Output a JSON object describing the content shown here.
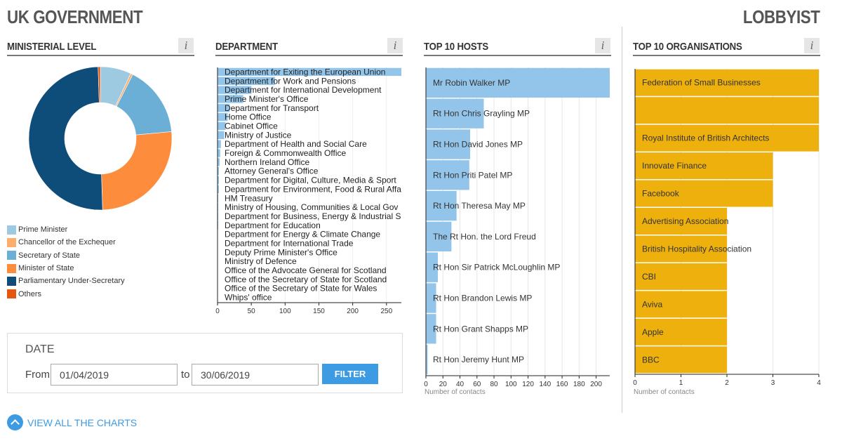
{
  "header": {
    "left_title": "UK GOVERNMENT",
    "right_title": "LOBBYIST"
  },
  "info_label": "i",
  "panels": {
    "ministerial_level": "MINISTERIAL LEVEL",
    "department": "DEPARTMENT",
    "top_hosts": "TOP 10 HOSTS",
    "top_orgs": "TOP 10 ORGANISATIONS"
  },
  "colors": {
    "hosts_bar": "#93c5ea",
    "orgs_bar": "#edb00c",
    "accent": "#3d9be4",
    "dept_bar": "#93c5ea"
  },
  "chart_data": [
    {
      "type": "pie",
      "name": "ministerial-level",
      "labels": [
        "Prime Minister",
        "Chancellor of the Exchequer",
        "Secretary of State",
        "Minister of State",
        "Parliamentary Under-Secretary",
        "Others"
      ],
      "values": [
        7,
        0.5,
        16,
        26,
        50,
        0.5
      ],
      "colors": [
        "#9ecae1",
        "#fdae6b",
        "#6baed6",
        "#fd8d3c",
        "#0e4c7a",
        "#e6550d"
      ],
      "legend": "bottom-left"
    },
    {
      "type": "bar",
      "orientation": "horizontal",
      "name": "department",
      "categories": [
        "Department for Exiting the European Union",
        "Department for Work and Pensions",
        "Department for International Development",
        "Prime Minister's Office",
        "Department for Transport",
        "Home Office",
        "Cabinet Office",
        "Ministry of Justice",
        "Department of Health and Social Care",
        "Foreign & Commonwealth Office",
        "Northern Ireland Office",
        "Attorney General's Office",
        "Department for Digital, Culture, Media & Sport",
        "Department for Environment, Food & Rural Affa",
        "HM Treasury",
        "Ministry of Housing, Communities & Local Gov",
        "Department for Business, Energy & Industrial S",
        "Department for Education",
        "Department for Energy & Climate Change",
        "Department for International Trade",
        "Deputy Prime Minister's Office",
        "Ministry of Defence",
        "Office of the Advocate General for Scotland",
        "Office of the Secretary of State for Scotland",
        "Office of the Secretary of State for Wales",
        "Whips' office"
      ],
      "values": [
        272,
        85,
        50,
        38,
        18,
        15,
        12,
        10,
        5,
        4,
        3,
        2,
        2,
        2,
        1,
        1,
        1,
        1,
        0,
        0,
        0,
        0,
        0,
        0,
        0,
        0
      ],
      "xticks": [
        0,
        50,
        100,
        150,
        200,
        250
      ],
      "xlim": [
        0,
        272
      ]
    },
    {
      "type": "bar",
      "orientation": "horizontal",
      "name": "top-hosts",
      "categories": [
        "Mr Robin Walker MP",
        "Rt Hon Chris Grayling MP",
        "Rt Hon David Jones MP",
        "Rt Hon Priti Patel MP",
        "Rt Hon Theresa May MP",
        "The Rt Hon. the Lord Freud",
        "Rt Hon Sir Patrick McLoughlin MP",
        "Rt Hon Brandon Lewis MP",
        "Rt Hon Grant Shapps MP",
        "Rt Hon Jeremy Hunt MP"
      ],
      "values": [
        216,
        68,
        52,
        51,
        36,
        30,
        14,
        12,
        12,
        2
      ],
      "xticks": [
        0,
        20,
        40,
        60,
        80,
        100,
        120,
        140,
        160,
        180,
        200
      ],
      "xlim": [
        0,
        216
      ],
      "xlabel": "Number of contacts"
    },
    {
      "type": "bar",
      "orientation": "horizontal",
      "name": "top-organisations",
      "categories": [
        "Federation of Small Businesses",
        "",
        "Royal Institute of British Architects",
        "Innovate Finance",
        "Facebook",
        "Advertising Association",
        "British Hospitality Association",
        "CBI",
        "Aviva",
        "Apple",
        "BBC"
      ],
      "values": [
        4,
        4,
        4,
        3,
        3,
        2,
        2,
        2,
        2,
        2,
        2
      ],
      "xticks": [
        0,
        1,
        2,
        3,
        4
      ],
      "xlim": [
        0,
        4
      ],
      "xlabel": "Number of contacts"
    }
  ],
  "date_filter": {
    "heading": "DATE",
    "from_label": "From",
    "from_value": "01/04/2019",
    "to_label": "to",
    "to_value": "30/06/2019",
    "button_label": "FILTER"
  },
  "footer": {
    "view_all_label": "VIEW ALL THE CHARTS"
  }
}
